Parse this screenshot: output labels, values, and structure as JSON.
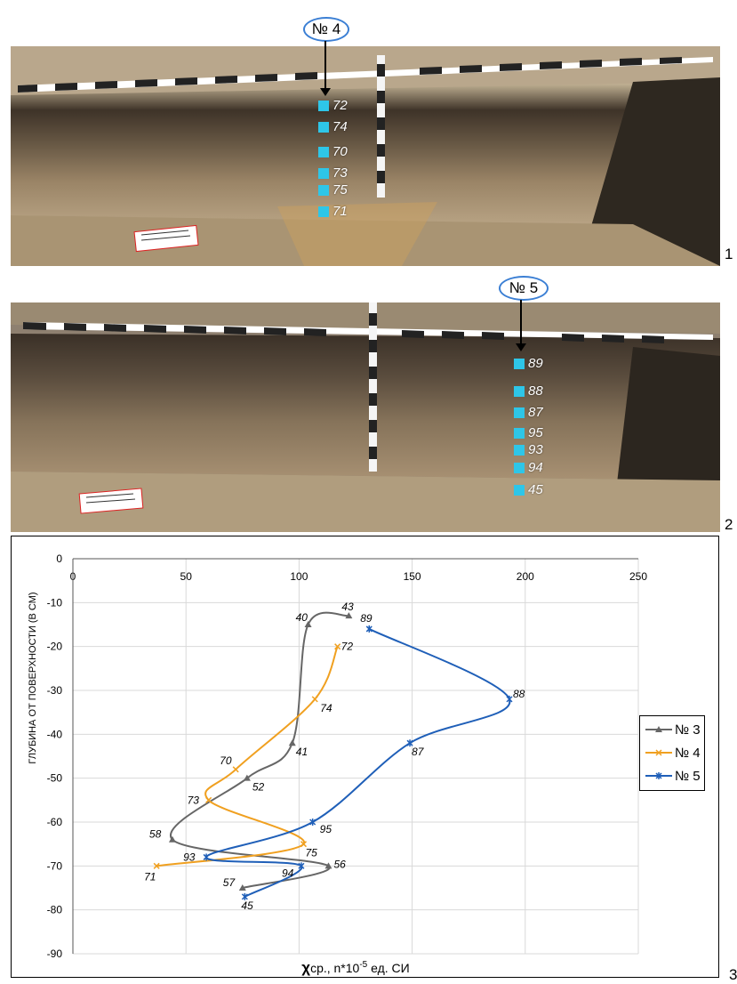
{
  "panels": {
    "panel1_number": "1",
    "panel2_number": "2",
    "panel3_number": "3"
  },
  "photo1": {
    "badge": "№ 4",
    "samples": [
      "72",
      "74",
      "70",
      "73",
      "75",
      "71"
    ]
  },
  "photo2": {
    "badge": "№ 5",
    "samples": [
      "89",
      "88",
      "87",
      "95",
      "93",
      "94",
      "45"
    ]
  },
  "colors": {
    "series_3": "#666666",
    "series_4": "#f0a020",
    "series_5": "#1f5fb8",
    "sample_marker": "#2ec6e8",
    "badge_border": "#3b7fd4"
  },
  "chart_data": {
    "type": "line",
    "ylabel": "ГЛУБИНА ОТ ПОВЕРХНОСТИ (В СМ)",
    "xlabel_main": "χ",
    "xlabel_rest": "ср., n*10",
    "xlabel_exp": "-5",
    "xlabel_unit": " ед. СИ",
    "xlim": [
      0,
      250
    ],
    "ylim": [
      -90,
      0
    ],
    "x_ticks": [
      "0",
      "50",
      "100",
      "150",
      "200",
      "250"
    ],
    "y_ticks": [
      "0",
      "-10",
      "-20",
      "-30",
      "-40",
      "-50",
      "-60",
      "-70",
      "-80",
      "-90"
    ],
    "grid": true,
    "legend_position": "right",
    "series": [
      {
        "name": "№ 3",
        "marker": "triangle",
        "points": [
          {
            "x": 122,
            "y": -13,
            "label": "43"
          },
          {
            "x": 104,
            "y": -15,
            "label": "40"
          },
          {
            "x": 97,
            "y": -42,
            "label": "41"
          },
          {
            "x": 77,
            "y": -50,
            "label": "52"
          },
          {
            "x": 44,
            "y": -64,
            "label": "58"
          },
          {
            "x": 113,
            "y": -70,
            "label": "56"
          },
          {
            "x": 75,
            "y": -75,
            "label": "57"
          }
        ]
      },
      {
        "name": "№ 4",
        "marker": "x",
        "points": [
          {
            "x": 117,
            "y": -20,
            "label": "72"
          },
          {
            "x": 107,
            "y": -32,
            "label": "74"
          },
          {
            "x": 72,
            "y": -48,
            "label": "70"
          },
          {
            "x": 60,
            "y": -55,
            "label": "73"
          },
          {
            "x": 102,
            "y": -65,
            "label": "75"
          },
          {
            "x": 37,
            "y": -70,
            "label": "71"
          }
        ]
      },
      {
        "name": "№ 5",
        "marker": "star",
        "points": [
          {
            "x": 131,
            "y": -16,
            "label": "89"
          },
          {
            "x": 193,
            "y": -32,
            "label": "88"
          },
          {
            "x": 149,
            "y": -42,
            "label": "87"
          },
          {
            "x": 106,
            "y": -60,
            "label": "95"
          },
          {
            "x": 59,
            "y": -68,
            "label": "93"
          },
          {
            "x": 101,
            "y": -70,
            "label": "94"
          },
          {
            "x": 76,
            "y": -77,
            "label": "45"
          }
        ]
      }
    ]
  }
}
